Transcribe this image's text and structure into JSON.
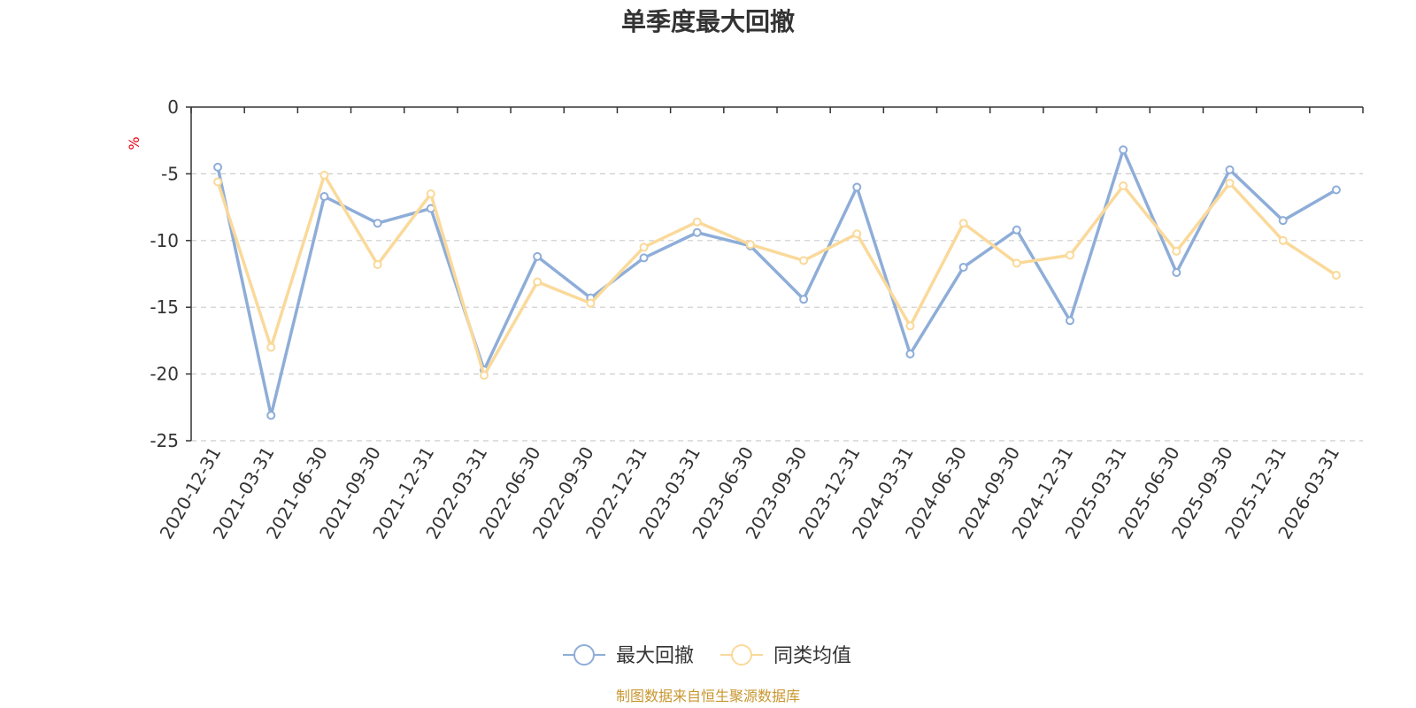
{
  "chart_data": {
    "type": "line",
    "title": "单季度最大回撤",
    "ylabel": "%",
    "ylim": [
      -25,
      0
    ],
    "yticks": [
      0,
      -5,
      -10,
      -15,
      -20,
      -25
    ],
    "grid": true,
    "legend_position": "bottom",
    "categories": [
      "2020-12-31",
      "2021-03-31",
      "2021-06-30",
      "2021-09-30",
      "2021-12-31",
      "2022-03-31",
      "2022-06-30",
      "2022-09-30",
      "2022-12-31",
      "2023-03-31",
      "2023-06-30",
      "2023-09-30",
      "2023-12-31",
      "2024-03-31",
      "2024-06-30",
      "2024-09-30",
      "2024-12-31",
      "2025-03-31",
      "2025-06-30",
      "2025-09-30",
      "2025-12-31",
      "2026-03-31"
    ],
    "series": [
      {
        "name": "最大回撤",
        "color": "#8eadd8",
        "values": [
          -4.5,
          -23.1,
          -6.7,
          -8.7,
          -7.6,
          -19.7,
          -11.2,
          -14.3,
          -11.3,
          -9.4,
          -10.4,
          -14.4,
          -6.0,
          -18.5,
          -12.0,
          -9.2,
          -16.0,
          -3.2,
          -12.4,
          -4.7,
          -8.5,
          -6.2
        ]
      },
      {
        "name": "同类均值",
        "color": "#fad99a",
        "values": [
          -5.6,
          -18.0,
          -5.1,
          -11.8,
          -6.5,
          -20.1,
          -13.1,
          -14.7,
          -10.5,
          -8.6,
          -10.3,
          -11.5,
          -9.5,
          -16.4,
          -8.7,
          -11.7,
          -11.1,
          -5.9,
          -10.8,
          -5.7,
          -10.0,
          -12.6
        ]
      }
    ],
    "source": "制图数据来自恒生聚源数据库"
  }
}
